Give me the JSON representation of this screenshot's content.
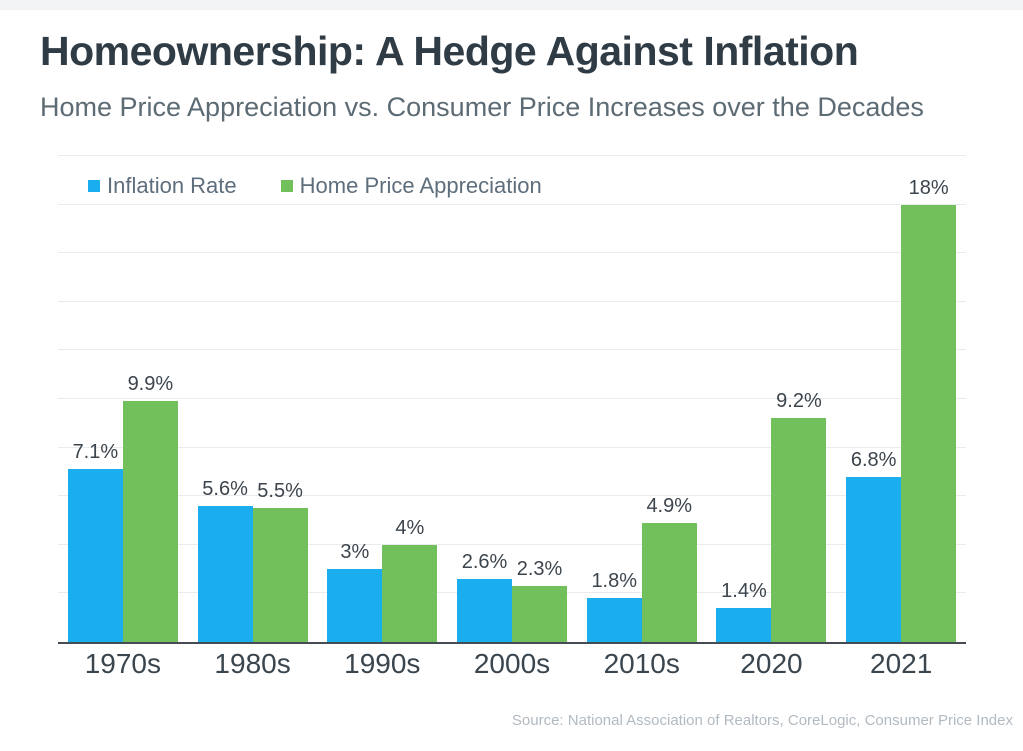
{
  "page": {
    "title": "Homeownership: A Hedge Against Inflation",
    "subtitle": "Home Price Appreciation vs. Consumer Price Increases over the Decades",
    "source": "Source: National Association of Realtors, CoreLogic, Consumer Price Index"
  },
  "colors": {
    "inflation_rate_blue": "#1AAEEF",
    "home_price_appreciation_green": "#72C05B",
    "title_text": "#2F3B45",
    "subtitle_text": "#5D6B74",
    "axis_line": "#454C54",
    "gridline": "#E9EBEC",
    "bar_value_text": "#3C454D",
    "x_tick_text": "#3A454E",
    "legend_text": "#5E6E7C",
    "source_text": "#B2BAC1",
    "top_band": "#F3F4F6"
  },
  "chart_data": {
    "type": "bar",
    "title": "Homeownership: A Hedge Against Inflation",
    "subtitle": "Home Price Appreciation vs. Consumer Price Increases over the Decades",
    "categories": [
      "1970s",
      "1980s",
      "1990s",
      "2000s",
      "2010s",
      "2020",
      "2021"
    ],
    "series": [
      {
        "name": "Inflation Rate",
        "color": "#1AAEEF",
        "values": [
          7.1,
          5.6,
          3,
          2.6,
          1.8,
          1.4,
          6.8
        ],
        "labels": [
          "7.1%",
          "5.6%",
          "3%",
          "2.6%",
          "1.8%",
          "1.4%",
          "6.8%"
        ]
      },
      {
        "name": "Home Price Appreciation",
        "color": "#72C05B",
        "values": [
          9.9,
          5.5,
          4,
          2.3,
          4.9,
          9.2,
          18
        ],
        "labels": [
          "9.9%",
          "5.5%",
          "4%",
          "2.3%",
          "4.9%",
          "9.2%",
          "18%"
        ]
      }
    ],
    "ylim": [
      0,
      20
    ],
    "gridline_step": 2,
    "grid": true,
    "y_axis_labels_visible": false,
    "legend_position": "top-left",
    "value_labels": "above-bars",
    "source": "Source: National Association of Realtors, CoreLogic, Consumer Price Index"
  }
}
